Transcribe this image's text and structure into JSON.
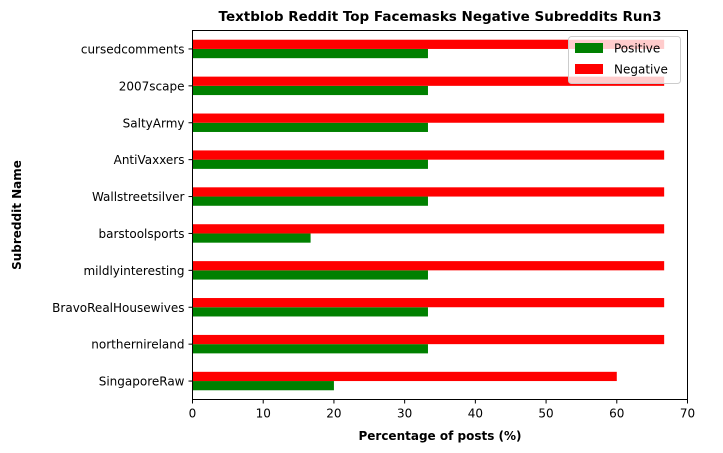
{
  "chart_data": {
    "type": "bar",
    "orientation": "horizontal",
    "title": "Textblob Reddit Top Facemasks Negative Subreddits Run3",
    "xlabel": "Percentage of posts (%)",
    "ylabel": "Subreddit Name",
    "xlim": [
      0,
      70
    ],
    "xticks": [
      "0",
      "10",
      "20",
      "30",
      "40",
      "50",
      "60",
      "70"
    ],
    "categories": [
      "SingaporeRaw",
      "northernireland",
      "BravoRealHousewives",
      "mildlyinteresting",
      "barstoolsports",
      "Wallstreetsilver",
      "AntiVaxxers",
      "SaltyArmy",
      "2007scape",
      "cursedcomments"
    ],
    "series": [
      {
        "name": "Positive",
        "color": "#008000",
        "values": [
          20.0,
          33.3,
          33.3,
          33.3,
          16.7,
          33.3,
          33.3,
          33.3,
          33.3,
          33.3
        ]
      },
      {
        "name": "Negative",
        "color": "#ff0000",
        "values": [
          60.0,
          66.7,
          66.7,
          66.7,
          66.7,
          66.7,
          66.7,
          66.7,
          66.7,
          66.7
        ]
      }
    ],
    "grid": false,
    "legend_position": "top-right"
  }
}
